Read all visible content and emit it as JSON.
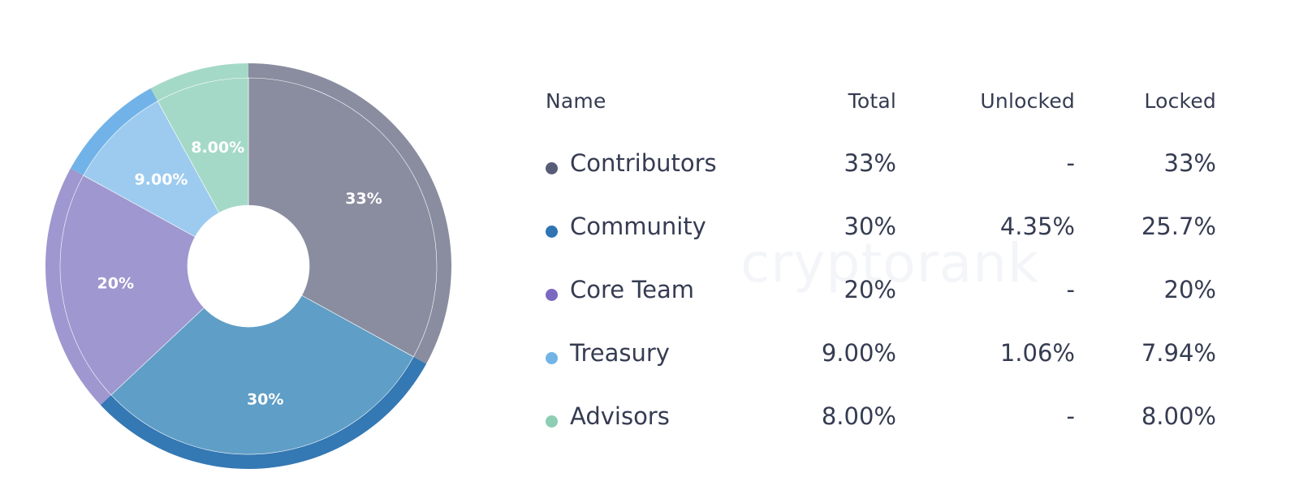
{
  "chart_data": {
    "type": "pie",
    "title": "",
    "categories": [
      "Contributors",
      "Community",
      "Core Team",
      "Treasury",
      "Advisors"
    ],
    "values": [
      33,
      30,
      20,
      9,
      8
    ],
    "slice_labels": [
      "33%",
      "30%",
      "20%",
      "9.00%",
      "8.00%"
    ],
    "colors": [
      "#8a8d9f",
      "#5f9ec6",
      "#9f97cf",
      "#9dcbef",
      "#a5d9c7"
    ],
    "edge_colors": [
      "#8a8d9f",
      "#3478b4",
      "#9f97cf",
      "#71b3e8",
      "#a5d9c7"
    ],
    "dot_colors": [
      "#585d77",
      "#2f75b3",
      "#7b68c0",
      "#72b4e6",
      "#8ccdb4"
    ],
    "donut": true,
    "legend": "right"
  },
  "watermark": "cryptorank",
  "table": {
    "headers": {
      "name": "Name",
      "total": "Total",
      "unlocked": "Unlocked",
      "locked": "Locked"
    },
    "rows": [
      {
        "name": "Contributors",
        "total": "33%",
        "unlocked": "-",
        "locked": "33%"
      },
      {
        "name": "Community",
        "total": "30%",
        "unlocked": "4.35%",
        "locked": "25.7%"
      },
      {
        "name": "Core Team",
        "total": "20%",
        "unlocked": "-",
        "locked": "20%"
      },
      {
        "name": "Treasury",
        "total": "9.00%",
        "unlocked": "1.06%",
        "locked": "7.94%"
      },
      {
        "name": "Advisors",
        "total": "8.00%",
        "unlocked": "-",
        "locked": "8.00%"
      }
    ]
  }
}
